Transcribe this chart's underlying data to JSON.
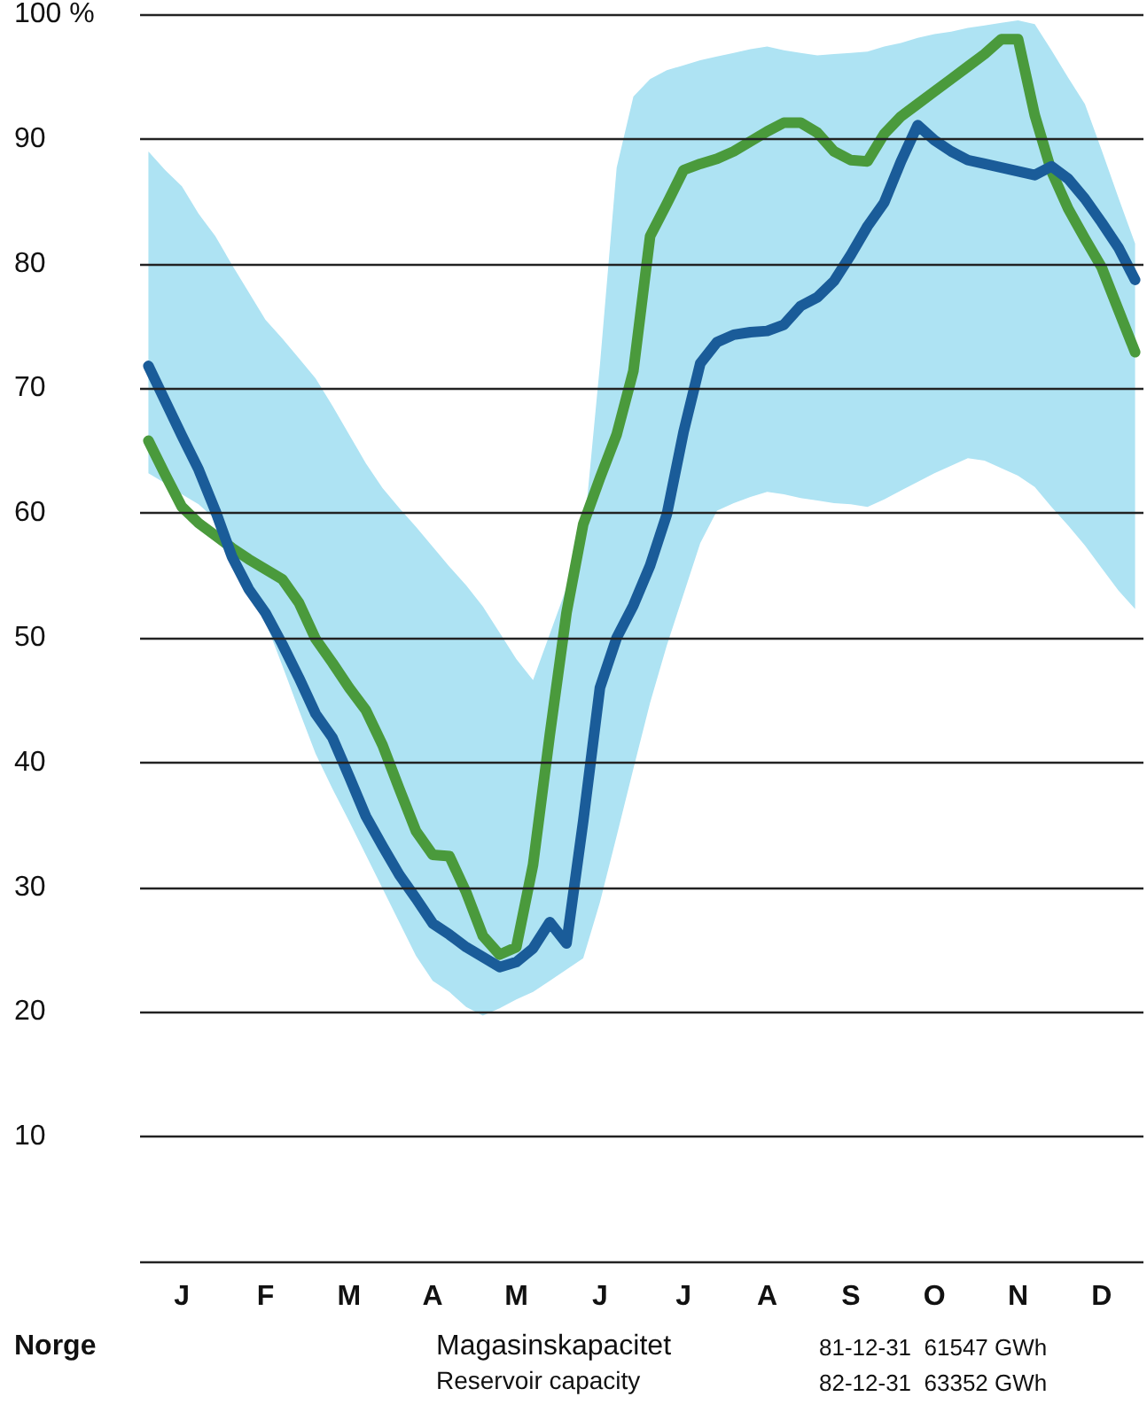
{
  "chart_data": {
    "type": "line",
    "categories": [
      null,
      null,
      "J",
      null,
      null,
      null,
      null,
      "F",
      null,
      null,
      null,
      null,
      "M",
      null,
      null,
      null,
      null,
      "A",
      null,
      null,
      null,
      null,
      "M",
      null,
      null,
      null,
      null,
      "J",
      null,
      null,
      null,
      null,
      "J",
      null,
      null,
      null,
      null,
      "A",
      null,
      null,
      null,
      null,
      "S",
      null,
      null,
      null,
      null,
      "O",
      null,
      null,
      null,
      null,
      "N",
      null,
      null,
      null,
      null,
      "D",
      null,
      null
    ],
    "ylim": [
      0,
      100
    ],
    "yticks": [
      {
        "value": 0,
        "label": null
      },
      10,
      20,
      30,
      40,
      50,
      60,
      70,
      80,
      90,
      {
        "value": 100,
        "label": "100 %"
      }
    ],
    "grid": "y",
    "marker": "none",
    "line_style": "solid",
    "series": [
      {
        "type": "area",
        "color": "#aee3f3",
        "values": [
          null,
          null,
          null,
          null,
          null,
          null,
          null,
          null,
          null,
          null,
          null,
          null,
          null,
          null,
          null,
          null,
          null,
          null,
          null,
          null,
          null,
          null,
          null,
          null,
          null,
          null,
          null,
          null,
          null,
          null,
          null,
          null,
          null,
          null,
          null,
          null,
          null,
          null,
          null,
          null,
          null,
          null,
          null,
          null,
          null,
          null,
          null,
          null,
          null,
          null,
          null,
          null,
          null,
          null,
          null,
          null,
          null,
          null,
          null,
          null
        ],
        "lower": [
          63.2,
          62.4,
          61.5,
          60.7,
          59.5,
          56.8,
          54,
          51.3,
          47.8,
          44.2,
          40.7,
          37.9,
          35.3,
          32.6,
          29.9,
          27.2,
          24.5,
          22.5,
          21.6,
          20.4,
          19.7,
          20.3,
          21,
          21.6,
          22.5,
          23.4,
          24.3,
          28.8,
          34.1,
          39.5,
          44.8,
          49.4,
          53.5,
          57.6,
          60.2,
          60.8,
          61.3,
          61.7,
          61.5,
          61.2,
          61,
          60.8,
          60.7,
          60.5,
          61.1,
          61.8,
          62.5,
          63.2,
          63.8,
          64.4,
          64.2,
          63.6,
          63,
          62.1,
          60.5,
          59,
          57.4,
          55.6,
          53.8,
          52.3
        ],
        "upper": [
          89,
          87.5,
          86.2,
          84,
          82.2,
          79.9,
          77.7,
          75.5,
          74,
          72.4,
          70.8,
          68.6,
          66.3,
          64,
          62,
          60.4,
          58.9,
          57.3,
          55.7,
          54.2,
          52.5,
          50.4,
          48.3,
          46.6,
          50.3,
          54,
          57.8,
          71.9,
          87.7,
          93.4,
          94.8,
          95.5,
          95.9,
          96.3,
          96.6,
          96.9,
          97.2,
          97.4,
          97.1,
          96.9,
          96.7,
          96.8,
          96.9,
          97,
          97.4,
          97.7,
          98.1,
          98.4,
          98.6,
          98.9,
          99.1,
          99.3,
          99.5,
          99.2,
          97.1,
          94.9,
          92.8,
          89.1,
          85.3,
          81.6
        ]
      },
      {
        "color": "#4a9a3c",
        "values": [
          65.8,
          63.1,
          60.5,
          59.2,
          58.2,
          57.2,
          56.3,
          55.5,
          54.7,
          52.8,
          49.9,
          48,
          46,
          44.2,
          41.4,
          37.9,
          34.5,
          32.6,
          32.5,
          29.6,
          26.1,
          24.6,
          25.2,
          31.8,
          42.2,
          52,
          59.1,
          62.8,
          66.3,
          71.4,
          82.2,
          84.8,
          87.5,
          88,
          88.4,
          89,
          89.8,
          90.6,
          91.3,
          91.3,
          90.5,
          89,
          88.3,
          88.2,
          90.4,
          91.8,
          92.8,
          93.8,
          94.8,
          95.8,
          96.8,
          98,
          98,
          91.9,
          87.4,
          84.4,
          82,
          79.7,
          76.3,
          72.9
        ]
      },
      {
        "color": "#1a5c99",
        "values": [
          71.8,
          69,
          66.2,
          63.5,
          60.2,
          56.5,
          53.9,
          52,
          49.5,
          46.8,
          43.9,
          42,
          38.9,
          35.7,
          33.3,
          31,
          29.1,
          27.1,
          26.2,
          25.2,
          24.4,
          23.6,
          24,
          25.1,
          27.2,
          25.5,
          35.3,
          46,
          50,
          52.6,
          55.8,
          59.9,
          66.5,
          72,
          73.7,
          74.3,
          74.5,
          74.6,
          75.1,
          76.6,
          77.3,
          78.6,
          80.7,
          83,
          84.9,
          88.2,
          91.1,
          89.9,
          89,
          88.3,
          88,
          87.7,
          87.4,
          87.1,
          87.8,
          86.8,
          85.2,
          83.3,
          81.3,
          78.7
        ]
      }
    ],
    "annotations": [
      "Norge",
      "Magasinskapacitet",
      "Reservoir capacity",
      "81-12-31  61547 GWh",
      "82-12-31  63352 GWh"
    ]
  }
}
